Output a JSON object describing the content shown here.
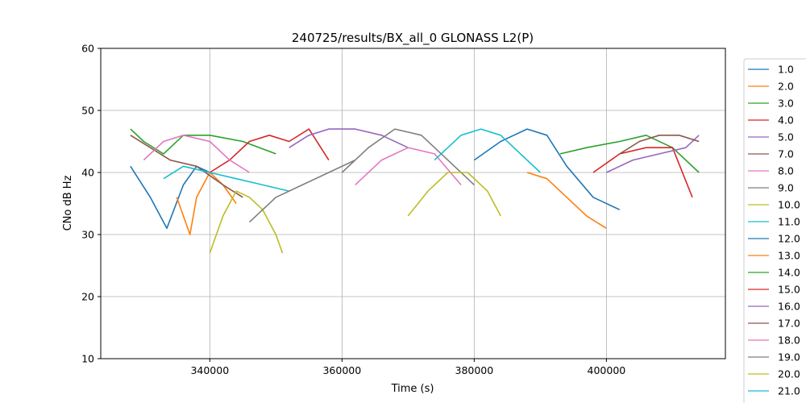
{
  "chart_data": {
    "type": "line",
    "title": "240725/results/BX_all_0 GLONASS L2(P)",
    "xlabel": "Time (s)",
    "ylabel": "CNo dB Hz",
    "xlim": [
      323500,
      418000
    ],
    "ylim": [
      10,
      60
    ],
    "xticks": [
      340000,
      360000,
      380000,
      400000
    ],
    "xtick_labels": [
      "340000",
      "360000",
      "380000",
      "400000"
    ],
    "yticks": [
      10,
      20,
      30,
      40,
      50,
      60
    ],
    "ytick_labels": [
      "10",
      "20",
      "30",
      "40",
      "50",
      "60"
    ],
    "grid": true,
    "legend_position": "right",
    "series": [
      {
        "name": "1.0",
        "color": "#1f77b4",
        "points": [
          [
            328000,
            41
          ],
          [
            331000,
            36
          ],
          [
            333500,
            31
          ],
          [
            336000,
            38
          ],
          [
            338000,
            41
          ],
          [
            340000,
            40
          ]
        ]
      },
      {
        "name": "2.0",
        "color": "#ff7f0e",
        "points": [
          [
            335000,
            36
          ],
          [
            337000,
            30
          ],
          [
            338000,
            36
          ],
          [
            340000,
            40
          ],
          [
            342000,
            38
          ],
          [
            344000,
            35
          ]
        ]
      },
      {
        "name": "3.0",
        "color": "#2ca02c",
        "points": [
          [
            328000,
            47
          ],
          [
            330000,
            45
          ],
          [
            333000,
            43
          ],
          [
            336000,
            46
          ],
          [
            340000,
            46
          ],
          [
            345000,
            45
          ],
          [
            350000,
            43
          ]
        ]
      },
      {
        "name": "4.0",
        "color": "#d62728",
        "points": [
          [
            340000,
            40
          ],
          [
            343000,
            42
          ],
          [
            346000,
            45
          ],
          [
            349000,
            46
          ],
          [
            352000,
            45
          ],
          [
            355000,
            47
          ],
          [
            358000,
            42
          ]
        ]
      },
      {
        "name": "5.0",
        "color": "#9467bd",
        "points": [
          [
            352000,
            44
          ],
          [
            355000,
            46
          ],
          [
            358000,
            47
          ],
          [
            362000,
            47
          ],
          [
            366000,
            46
          ],
          [
            370000,
            44
          ]
        ]
      },
      {
        "name": "7.0",
        "color": "#8c564b",
        "points": [
          [
            328000,
            46
          ],
          [
            331000,
            44
          ],
          [
            334000,
            42
          ],
          [
            338000,
            41
          ],
          [
            342000,
            38
          ],
          [
            345000,
            36
          ]
        ]
      },
      {
        "name": "8.0",
        "color": "#e377c2",
        "points": [
          [
            330000,
            42
          ],
          [
            333000,
            45
          ],
          [
            336000,
            46
          ],
          [
            340000,
            45
          ],
          [
            343000,
            42
          ],
          [
            346000,
            40
          ]
        ]
      },
      {
        "name": "9.0",
        "color": "#7f7f7f",
        "points": [
          [
            360000,
            40
          ],
          [
            364000,
            44
          ],
          [
            368000,
            47
          ],
          [
            372000,
            46
          ],
          [
            376000,
            42
          ],
          [
            380000,
            38
          ]
        ]
      },
      {
        "name": "10.0",
        "color": "#bcbd22",
        "points": [
          [
            340000,
            27
          ],
          [
            342000,
            33
          ],
          [
            344000,
            37
          ],
          [
            346000,
            36
          ],
          [
            348000,
            34
          ],
          [
            350000,
            30
          ],
          [
            351000,
            27
          ]
        ]
      },
      {
        "name": "11.0",
        "color": "#17becf",
        "points": [
          [
            333000,
            39
          ],
          [
            336000,
            41
          ],
          [
            340000,
            40
          ],
          [
            344000,
            39
          ],
          [
            348000,
            38
          ],
          [
            352000,
            37
          ]
        ]
      },
      {
        "name": "12.0",
        "color": "#1f77b4",
        "points": [
          [
            380000,
            42
          ],
          [
            384000,
            45
          ],
          [
            388000,
            47
          ],
          [
            391000,
            46
          ],
          [
            394000,
            41
          ],
          [
            398000,
            36
          ],
          [
            402000,
            34
          ]
        ]
      },
      {
        "name": "13.0",
        "color": "#ff7f0e",
        "points": [
          [
            388000,
            40
          ],
          [
            391000,
            39
          ],
          [
            394000,
            36
          ],
          [
            397000,
            33
          ],
          [
            400000,
            31
          ]
        ]
      },
      {
        "name": "14.0",
        "color": "#2ca02c",
        "points": [
          [
            393000,
            43
          ],
          [
            397000,
            44
          ],
          [
            402000,
            45
          ],
          [
            406000,
            46
          ],
          [
            410000,
            44
          ],
          [
            414000,
            40
          ]
        ]
      },
      {
        "name": "15.0",
        "color": "#d62728",
        "points": [
          [
            398000,
            40
          ],
          [
            402000,
            43
          ],
          [
            406000,
            44
          ],
          [
            410000,
            44
          ],
          [
            413000,
            36
          ]
        ]
      },
      {
        "name": "16.0",
        "color": "#9467bd",
        "points": [
          [
            400000,
            40
          ],
          [
            404000,
            42
          ],
          [
            408000,
            43
          ],
          [
            412000,
            44
          ],
          [
            414000,
            46
          ]
        ]
      },
      {
        "name": "17.0",
        "color": "#8c564b",
        "points": [
          [
            402000,
            43
          ],
          [
            405000,
            45
          ],
          [
            408000,
            46
          ],
          [
            411000,
            46
          ],
          [
            414000,
            45
          ]
        ]
      },
      {
        "name": "18.0",
        "color": "#e377c2",
        "points": [
          [
            362000,
            38
          ],
          [
            366000,
            42
          ],
          [
            370000,
            44
          ],
          [
            374000,
            43
          ],
          [
            378000,
            38
          ]
        ]
      },
      {
        "name": "19.0",
        "color": "#7f7f7f",
        "points": [
          [
            346000,
            32
          ],
          [
            350000,
            36
          ],
          [
            354000,
            38
          ],
          [
            358000,
            40
          ],
          [
            362000,
            42
          ]
        ]
      },
      {
        "name": "20.0",
        "color": "#bcbd22",
        "points": [
          [
            370000,
            33
          ],
          [
            373000,
            37
          ],
          [
            376000,
            40
          ],
          [
            379000,
            40
          ],
          [
            382000,
            37
          ],
          [
            384000,
            33
          ]
        ]
      },
      {
        "name": "21.0",
        "color": "#17becf",
        "points": [
          [
            374000,
            42
          ],
          [
            378000,
            46
          ],
          [
            381000,
            47
          ],
          [
            384000,
            46
          ],
          [
            387000,
            43
          ],
          [
            390000,
            40
          ]
        ]
      }
    ]
  }
}
